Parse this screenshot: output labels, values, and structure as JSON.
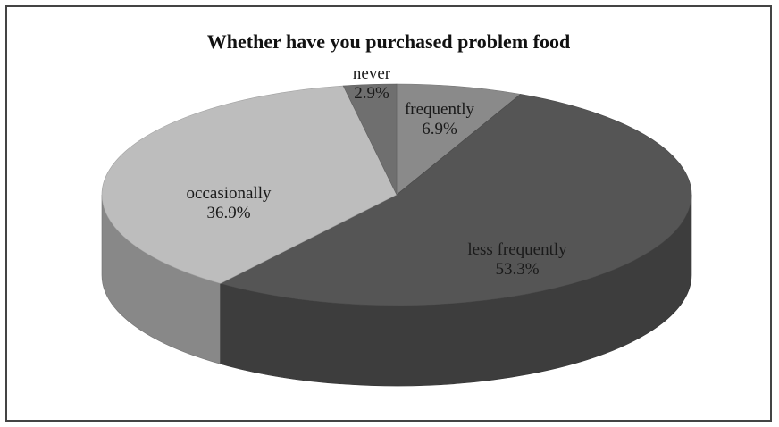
{
  "chart_data": {
    "type": "pie",
    "title": "Whether have you purchased problem food",
    "style": "3d",
    "slices": [
      {
        "name": "frequently",
        "value": 6.9,
        "label": "6.9%",
        "color": "#8a8a8a"
      },
      {
        "name": "less frequently",
        "value": 53.3,
        "label": "53.3%",
        "color": "#555555"
      },
      {
        "name": "occasionally",
        "value": 36.9,
        "label": "36.9%",
        "color": "#bdbdbd"
      },
      {
        "name": "never",
        "value": 2.9,
        "label": "2.9%",
        "color": "#6f6f6f"
      }
    ]
  }
}
